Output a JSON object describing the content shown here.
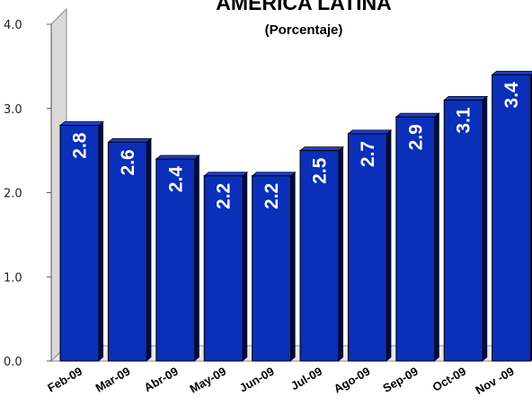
{
  "chart_data": {
    "type": "bar",
    "title": "AMERICA LATINA",
    "subtitle": "(Porcentaje)",
    "categories": [
      "Feb-09",
      "Mar-09",
      "Abr-09",
      "May-09",
      "Jun-09",
      "Jul-09",
      "Ago-09",
      "Sep-09",
      "Oct-09",
      "Nov -09"
    ],
    "values": [
      2.8,
      2.6,
      2.4,
      2.2,
      2.2,
      2.5,
      2.7,
      2.9,
      3.1,
      3.4
    ],
    "data_labels": [
      "2.8",
      "2.6",
      "2.4",
      "2.2",
      "2.2",
      "2.5",
      "2.7",
      "2.9",
      "3.1",
      "3.4"
    ],
    "yticks": [
      "0.0",
      "1.0",
      "2.0",
      "3.0",
      "4.0"
    ],
    "ylim": [
      0,
      4
    ],
    "grid": false,
    "legend": "none",
    "bar_color": "#0a2fb8",
    "bar_top_color": "#1c3fd0",
    "bar_side_color": "#000a3a"
  }
}
